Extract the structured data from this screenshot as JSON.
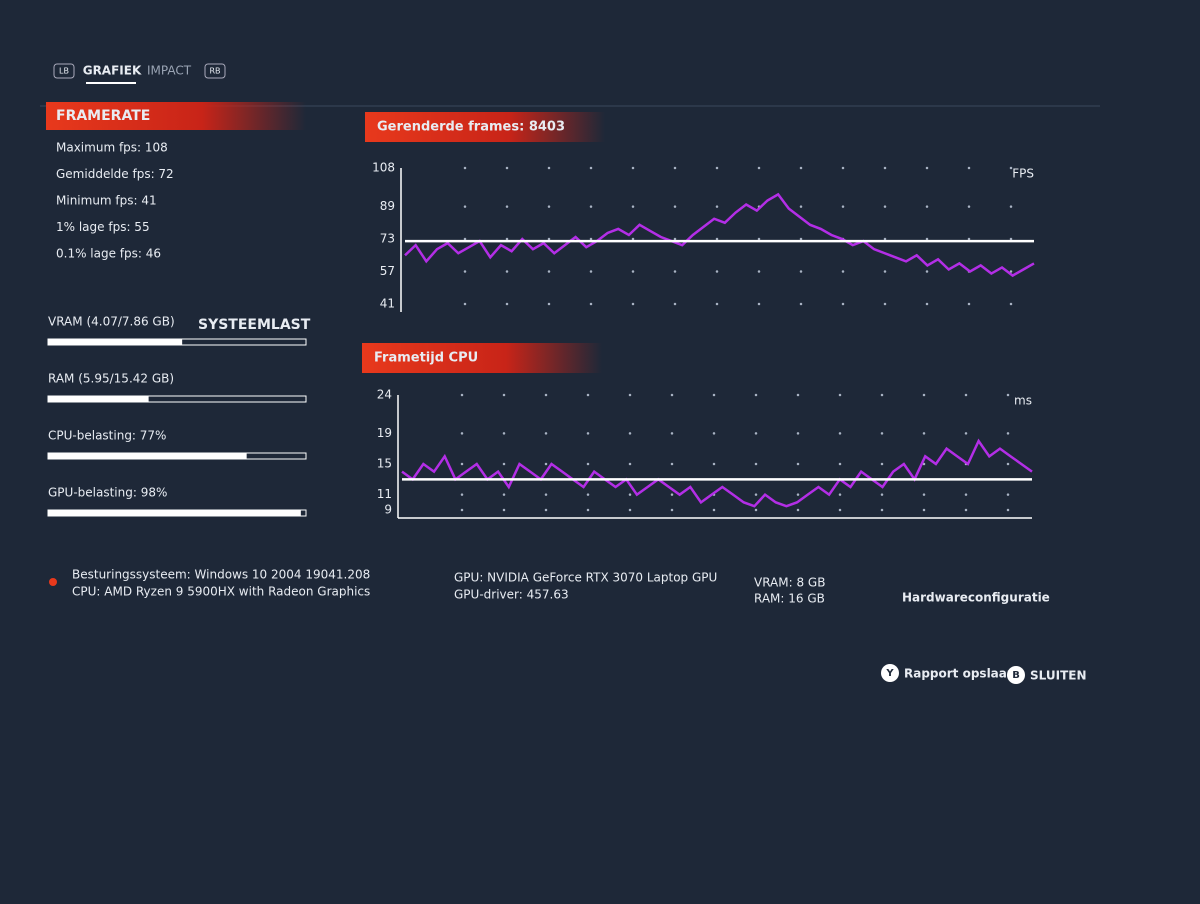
{
  "tabs": [
    "LB",
    "GRAFIEK",
    "IMPACT",
    "RB"
  ],
  "framerate": {
    "title": "FRAMERATE",
    "stats": [
      "Maximum fps: 108",
      "Gemiddelde fps: 72",
      "Minimum fps: 41",
      "1% lage fps: 55",
      "0.1% lage fps: 46"
    ]
  },
  "system_load": {
    "title": "SYSTEEMLAST",
    "xlim": [
      0,
      100
    ],
    "items": [
      {
        "label": "VRAM (4.07/7.86 GB)",
        "value": 52
      },
      {
        "label": "RAM (5.95/15.42 GB)",
        "value": 39
      },
      {
        "label": "CPU-belasting: 77%",
        "value": 77
      },
      {
        "label": "GPU-belasting: 98%",
        "value": 98
      }
    ]
  },
  "chart_data": [
    {
      "type": "line",
      "title": "Gerenderde frames: 8403",
      "y_label": "FPS",
      "ylim": [
        41,
        108
      ],
      "yticks": [
        108,
        89,
        73,
        57,
        41
      ],
      "grid": true,
      "average": 72,
      "series": [
        {
          "color": "#b32ee6",
          "values": [
            65,
            70,
            62,
            68,
            71,
            66,
            69,
            72,
            64,
            70,
            67,
            73,
            68,
            71,
            66,
            70,
            74,
            69,
            72,
            76,
            78,
            75,
            80,
            77,
            74,
            72,
            70,
            75,
            79,
            83,
            81,
            86,
            90,
            87,
            92,
            95,
            88,
            84,
            80,
            78,
            75,
            73,
            70,
            72,
            68,
            66,
            64,
            62,
            65,
            60,
            63,
            58,
            61,
            57,
            60,
            56,
            59,
            55,
            58,
            61
          ]
        }
      ]
    },
    {
      "type": "line",
      "title": "Frametijd CPU",
      "y_label": "ms",
      "ylim": [
        9,
        24
      ],
      "yticks": [
        24,
        19,
        15,
        11,
        9
      ],
      "grid": true,
      "average": 13,
      "series": [
        {
          "color": "#b32ee6",
          "values": [
            14,
            13,
            15,
            14,
            16,
            13,
            14,
            15,
            13,
            14,
            12,
            15,
            14,
            13,
            15,
            14,
            13,
            12,
            14,
            13,
            12,
            13,
            11,
            12,
            13,
            12,
            11,
            12,
            10,
            11,
            12,
            11,
            10,
            9.5,
            11,
            10,
            9.5,
            10,
            11,
            12,
            11,
            13,
            12,
            14,
            13,
            12,
            14,
            15,
            13,
            16,
            15,
            17,
            16,
            15,
            18,
            16,
            17,
            16,
            15,
            14
          ]
        }
      ]
    }
  ],
  "hardware": {
    "os": "Besturingssysteem: Windows 10 2004 19041.208",
    "cpu": "CPU: AMD Ryzen 9 5900HX with Radeon Graphics",
    "gpu": "GPU: NVIDIA GeForce RTX 3070 Laptop GPU",
    "driver": "GPU-driver: 457.63",
    "vram": "VRAM: 8 GB",
    "ram": "RAM: 16 GB",
    "title": "Hardwareconfiguratie"
  },
  "buttons": [
    {
      "key": "Y",
      "label": "Rapport opslaan"
    },
    {
      "key": "B",
      "label": "SLUITEN"
    }
  ]
}
